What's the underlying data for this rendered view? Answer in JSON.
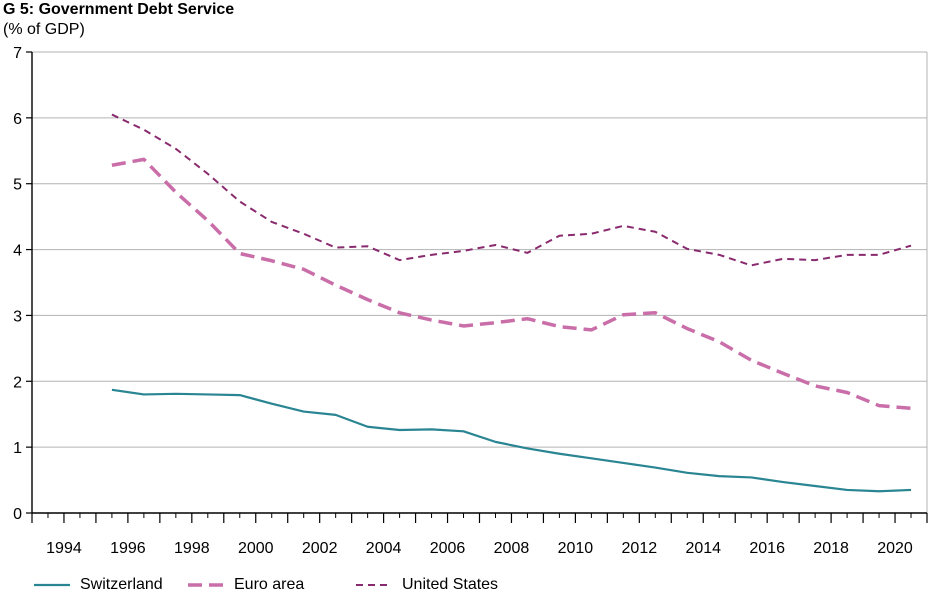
{
  "chart_data": {
    "type": "line",
    "title": "G 5: Government Debt Service",
    "subtitle": "(% of GDP)",
    "xlabel": "",
    "ylabel": "% of GDP",
    "xlim": [
      1993,
      2021
    ],
    "ylim": [
      0,
      7
    ],
    "yticks": [
      0,
      1,
      2,
      3,
      4,
      5,
      6,
      7
    ],
    "xtick_labels": [
      "1994",
      "1996",
      "1998",
      "2000",
      "2002",
      "2004",
      "2006",
      "2008",
      "2010",
      "2012",
      "2014",
      "2016",
      "2018",
      "2020"
    ],
    "grid": true,
    "legend_position": "bottom",
    "series": [
      {
        "name": "Switzerland",
        "color": "#2a8593",
        "style": "solid",
        "x": [
          1995,
          1996,
          1997,
          1998,
          1999,
          2000,
          2001,
          2002,
          2003,
          2004,
          2005,
          2006,
          2007,
          2008,
          2009,
          2010,
          2011,
          2012,
          2013,
          2014,
          2015,
          2016,
          2017,
          2018,
          2019,
          2020
        ],
        "values": [
          1.87,
          1.8,
          1.81,
          1.8,
          1.79,
          1.66,
          1.54,
          1.49,
          1.31,
          1.26,
          1.27,
          1.24,
          1.08,
          0.98,
          0.9,
          0.83,
          0.76,
          0.69,
          0.61,
          0.56,
          0.54,
          0.47,
          0.41,
          0.35,
          0.33,
          0.35
        ]
      },
      {
        "name": "Euro area",
        "color": "#c96ea8",
        "style": "long-dash",
        "x": [
          1995,
          1996,
          1997,
          1998,
          1999,
          2000,
          2001,
          2002,
          2003,
          2004,
          2005,
          2006,
          2007,
          2008,
          2009,
          2010,
          2011,
          2012,
          2013,
          2014,
          2015,
          2016,
          2017,
          2018,
          2019,
          2020
        ],
        "values": [
          5.28,
          5.37,
          4.87,
          4.44,
          3.94,
          3.83,
          3.7,
          3.46,
          3.24,
          3.04,
          2.93,
          2.84,
          2.89,
          2.95,
          2.83,
          2.78,
          3.01,
          3.04,
          2.8,
          2.6,
          2.32,
          2.12,
          1.93,
          1.83,
          1.63,
          1.59
        ]
      },
      {
        "name": "United States",
        "color": "#8a2a6e",
        "style": "short-dash",
        "x": [
          1995,
          1996,
          1997,
          1998,
          1999,
          2000,
          2001,
          2002,
          2003,
          2004,
          2005,
          2006,
          2007,
          2008,
          2009,
          2010,
          2011,
          2012,
          2013,
          2014,
          2015,
          2016,
          2017,
          2018,
          2019,
          2020
        ],
        "values": [
          6.05,
          5.82,
          5.53,
          5.15,
          4.73,
          4.42,
          4.24,
          4.03,
          4.05,
          3.84,
          3.92,
          3.98,
          4.07,
          3.95,
          4.21,
          4.24,
          4.36,
          4.27,
          4.01,
          3.92,
          3.76,
          3.86,
          3.84,
          3.92,
          3.92,
          4.06
        ]
      }
    ]
  }
}
